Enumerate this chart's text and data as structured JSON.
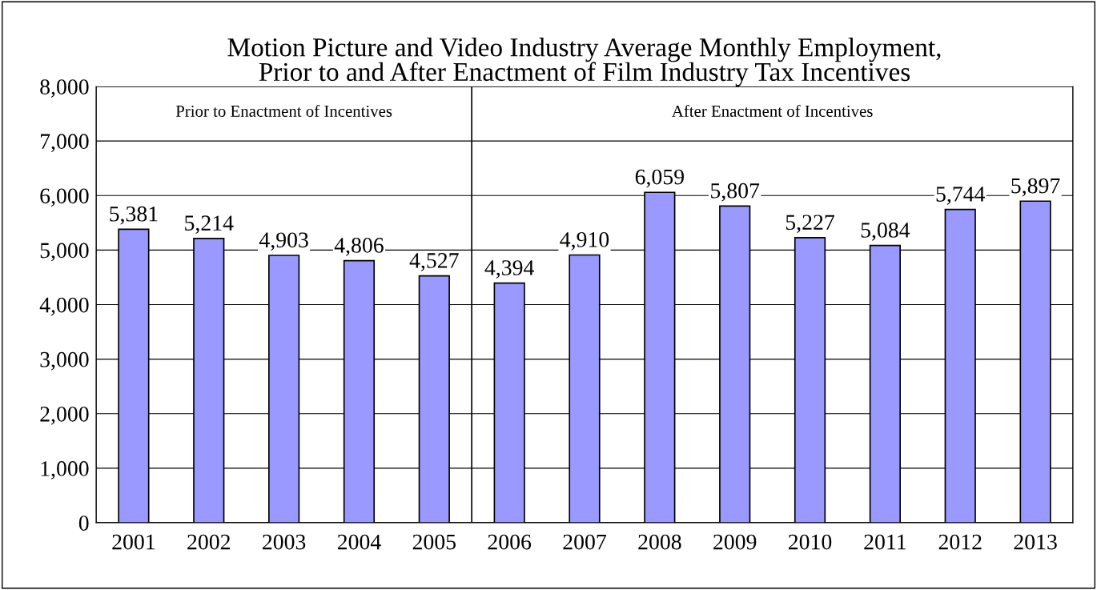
{
  "chart_data": {
    "type": "bar",
    "title": "Motion Picture and Video Industry Average Monthly Employment,\nPrior to and After Enactment of Film Industry Tax Incentives",
    "categories": [
      "2001",
      "2002",
      "2003",
      "2004",
      "2005",
      "2006",
      "2007",
      "2008",
      "2009",
      "2010",
      "2011",
      "2012",
      "2013"
    ],
    "series": [
      {
        "color": "#9999ff",
        "values": [
          5381,
          5214,
          4903,
          4806,
          4527,
          4394,
          4910,
          6059,
          5807,
          5227,
          5084,
          5744,
          5897
        ]
      }
    ],
    "value_labels": [
      "5,381",
      "5,214",
      "4,903",
      "4,806",
      "4,527",
      "4,394",
      "4,910",
      "6,059",
      "5,807",
      "5,227",
      "5,084",
      "5,744",
      "5,897"
    ],
    "ylim": [
      0,
      8000
    ],
    "yticks": [
      {
        "value": 0,
        "label": "0"
      },
      {
        "value": 1000,
        "label": "1,000"
      },
      {
        "value": 2000,
        "label": "2,000"
      },
      {
        "value": 3000,
        "label": "3,000"
      },
      {
        "value": 4000,
        "label": "4,000"
      },
      {
        "value": 5000,
        "label": "5,000"
      },
      {
        "value": 6000,
        "label": "6,000"
      },
      {
        "value": 7000,
        "label": "7,000"
      },
      {
        "value": 8000,
        "label": "8,000"
      }
    ],
    "bands": [
      {
        "axis": "x",
        "from": "2001",
        "to": "2005",
        "label": "Prior to Enactment of Incentives",
        "color": "#ffffff"
      },
      {
        "axis": "x",
        "from": "2006",
        "to": "2013",
        "label": "After Enactment of Incentives",
        "color": "#ffffff"
      }
    ],
    "grid": "y",
    "legend": false
  }
}
